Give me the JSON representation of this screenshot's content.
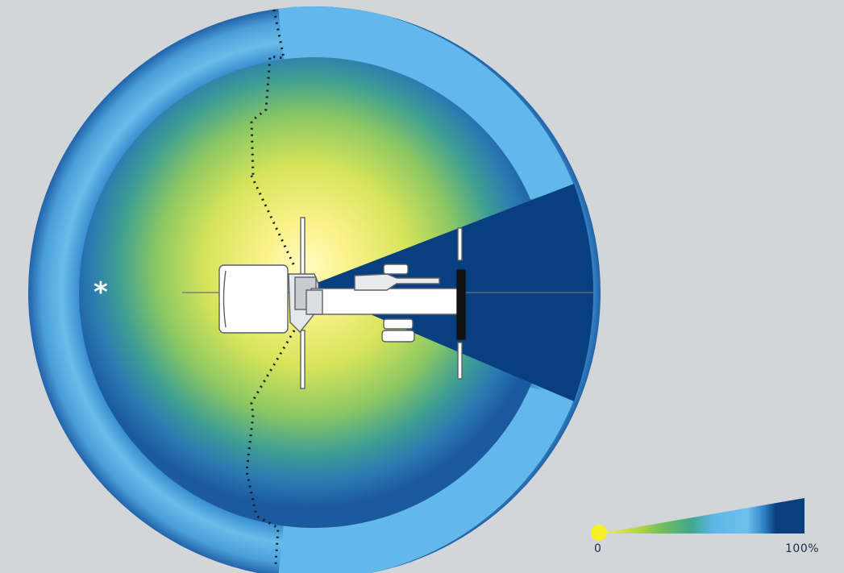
{
  "legend": {
    "min_label": "0",
    "max_label": "100%",
    "colors": [
      "#f8ef2a",
      "#b8d64a",
      "#42a98a",
      "#5cb6e6",
      "#0a3f7e"
    ]
  },
  "marker": {
    "symbol": "*"
  },
  "palette": {
    "background": "#d3d6d9",
    "outer_ring": "#5cb6e6",
    "dark_zone": "#083f7f",
    "center_glow": "#fff7a0",
    "tractor": "#ffffff"
  }
}
